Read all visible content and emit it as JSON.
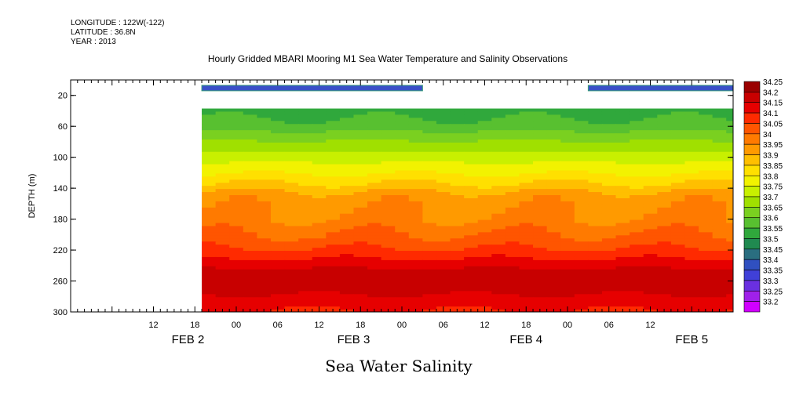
{
  "header": {
    "longitude": "LONGITUDE : 122W(-122)",
    "latitude": "LATITUDE : 36.8N",
    "year": "YEAR : 2013"
  },
  "chart_data": {
    "type": "heatmap",
    "title": "Hourly Gridded MBARI Mooring M1 Sea Water Temperature and Salinity Observations",
    "bottom_title": "Sea Water Salinity",
    "ylabel": "DEPTH (m)",
    "ylim": [
      300,
      0
    ],
    "y_ticks": [
      "20",
      "60",
      "100",
      "140",
      "180",
      "220",
      "260",
      "300"
    ],
    "x_ticks": [
      "12",
      "18",
      "00",
      "06",
      "12",
      "18",
      "00",
      "06",
      "12",
      "18",
      "00",
      "06",
      "12"
    ],
    "x_day_labels": [
      "FEB  2",
      "FEB  3",
      "FEB  4",
      "FEB  5"
    ],
    "x_range_hours": [
      0,
      96
    ],
    "data_start_hour": 19,
    "colorbar_levels": [
      "34.25",
      "34.2",
      "34.15",
      "34.1",
      "34.05",
      "34",
      "33.95",
      "33.9",
      "33.85",
      "33.8",
      "33.75",
      "33.7",
      "33.65",
      "33.6",
      "33.55",
      "33.5",
      "33.45",
      "33.4",
      "33.35",
      "33.3",
      "33.25",
      "33.2"
    ],
    "colorbar_colors": [
      "#9a0000",
      "#c80000",
      "#e60000",
      "#ff2a00",
      "#ff5500",
      "#ff7a00",
      "#ff9a00",
      "#ffbf00",
      "#ffe000",
      "#f2f200",
      "#c8f000",
      "#a0e000",
      "#7ad020",
      "#58c030",
      "#30a83c",
      "#208a50",
      "#2a6e80",
      "#3050c0",
      "#4040d8",
      "#6a30e0",
      "#a020ea",
      "#d000ff"
    ],
    "depth_profile": [
      {
        "depth": 40,
        "value": 33.55
      },
      {
        "depth": 60,
        "value": 33.6
      },
      {
        "depth": 80,
        "value": 33.68
      },
      {
        "depth": 100,
        "value": 33.75
      },
      {
        "depth": 120,
        "value": 33.82
      },
      {
        "depth": 135,
        "value": 33.88
      },
      {
        "depth": 150,
        "value": 33.95
      },
      {
        "depth": 180,
        "value": 33.98
      },
      {
        "depth": 210,
        "value": 34.05
      },
      {
        "depth": 230,
        "value": 34.12
      },
      {
        "depth": 255,
        "value": 34.22
      },
      {
        "depth": 275,
        "value": 34.18
      },
      {
        "depth": 300,
        "value": 34.12
      }
    ],
    "surface_bars": [
      {
        "start_hour": 19,
        "end_hour": 51,
        "depth": 10
      },
      {
        "start_hour": 75,
        "end_hour": 115,
        "depth": 10
      }
    ]
  }
}
